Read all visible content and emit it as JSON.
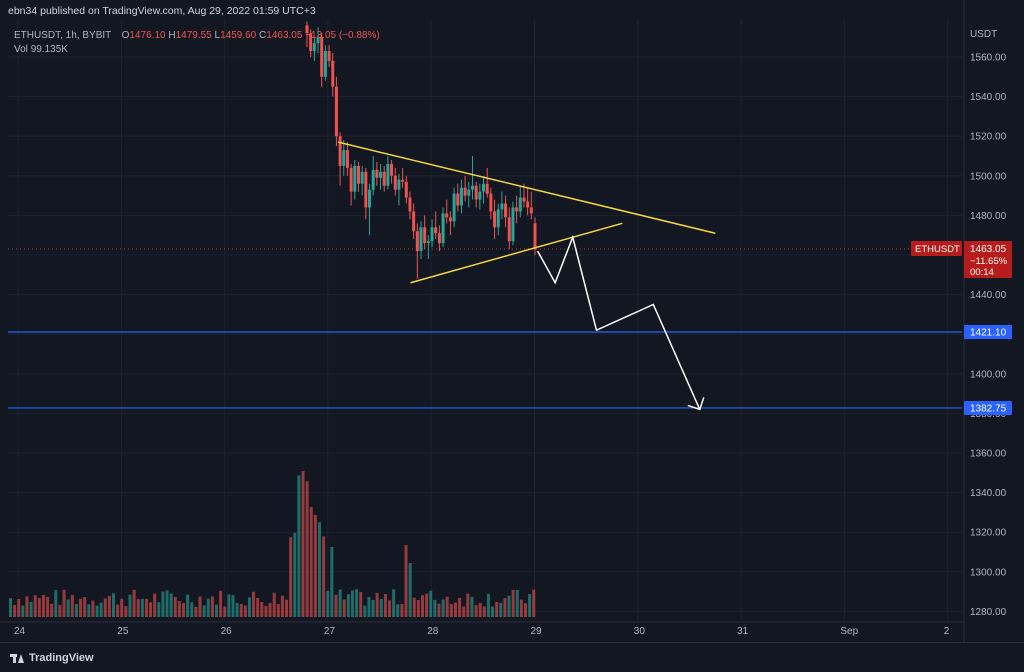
{
  "header": {
    "credit": "ebn34 published on TradingView.com, Aug 29, 2022 01:59 UTC+3"
  },
  "legend": {
    "symbol": "ETHUSDT, 1h, BYBIT",
    "o_label": "O",
    "o_value": "1476.10",
    "h_label": "H",
    "h_value": "1479.55",
    "l_label": "L",
    "l_value": "1459.60",
    "c_label": "C",
    "c_value": "1463.05",
    "change": "−13.05 (−0.88%)",
    "vol_label": "Vol",
    "vol_value": "99.135K"
  },
  "footer": {
    "brand": "TradingView"
  },
  "colors": {
    "background": "#131722",
    "grid": "#1e222d",
    "up": "#26a69a",
    "down": "#ef5350",
    "trendline": "#f5d93b",
    "arrow": "#ffffff",
    "hline": "#2962ff",
    "price_tag": "#b71c1c",
    "axis_text": "#b2b5be"
  },
  "chart_data": {
    "type": "candlestick",
    "symbol": "ETHUSDT",
    "timeframe": "1h",
    "exchange": "BYBIT",
    "currency": "USDT",
    "y_ticks": [
      1560,
      1540,
      1520,
      1500,
      1480,
      1460,
      1440,
      1420,
      1400,
      1380,
      1360,
      1340,
      1320,
      1300,
      1280
    ],
    "y_tick_labels": [
      "1560.00",
      "1540.00",
      "1520.00",
      "1500.00",
      "1480.00",
      "1460.00",
      "1440.00",
      "1420.00",
      "1400.00",
      "1380.00",
      "1360.00",
      "1340.00",
      "1320.00",
      "1300.00",
      "1280.00"
    ],
    "ylim": [
      1272,
      1580
    ],
    "x_ticks": [
      "24",
      "25",
      "26",
      "27",
      "28",
      "29",
      "30",
      "31",
      "Sep",
      "2"
    ],
    "current_price": {
      "label": "ETHUSDT",
      "value": "1463.05",
      "change": "−11.65%",
      "countdown": "00:14"
    },
    "hlines": [
      {
        "value": 1421.1,
        "label": "1421.10"
      },
      {
        "value": 1382.75,
        "label": "1382.75"
      }
    ],
    "trendlines": [
      {
        "name": "upper",
        "start": {
          "day": 27.1,
          "price": 1517
        },
        "end": {
          "day": 30.75,
          "price": 1471
        }
      },
      {
        "name": "lower",
        "start": {
          "day": 27.8,
          "price": 1446
        },
        "end": {
          "day": 29.85,
          "price": 1476
        }
      }
    ],
    "projection_path": [
      {
        "day": 29.03,
        "price": 1462
      },
      {
        "day": 29.2,
        "price": 1446
      },
      {
        "day": 29.37,
        "price": 1469
      },
      {
        "day": 29.6,
        "price": 1422
      },
      {
        "day": 30.15,
        "price": 1435
      },
      {
        "day": 30.6,
        "price": 1382
      }
    ],
    "ohlc": [
      [
        1576,
        1578,
        1565,
        1572
      ],
      [
        1572,
        1574,
        1560,
        1563
      ],
      [
        1563,
        1570,
        1558,
        1567
      ],
      [
        1567,
        1575,
        1562,
        1570
      ],
      [
        1570,
        1572,
        1545,
        1550
      ],
      [
        1550,
        1566,
        1548,
        1563
      ],
      [
        1563,
        1566,
        1555,
        1558
      ],
      [
        1558,
        1562,
        1540,
        1545
      ],
      [
        1545,
        1550,
        1515,
        1520
      ],
      [
        1520,
        1522,
        1495,
        1505
      ],
      [
        1505,
        1518,
        1500,
        1513
      ],
      [
        1513,
        1517,
        1500,
        1504
      ],
      [
        1504,
        1506,
        1485,
        1492
      ],
      [
        1492,
        1508,
        1488,
        1505
      ],
      [
        1505,
        1507,
        1492,
        1496
      ],
      [
        1496,
        1505,
        1490,
        1502
      ],
      [
        1502,
        1504,
        1478,
        1484
      ],
      [
        1484,
        1496,
        1470,
        1493
      ],
      [
        1493,
        1510,
        1490,
        1503
      ],
      [
        1503,
        1507,
        1495,
        1499
      ],
      [
        1499,
        1506,
        1493,
        1502
      ],
      [
        1502,
        1505,
        1492,
        1495
      ],
      [
        1495,
        1510,
        1493,
        1506
      ],
      [
        1506,
        1508,
        1496,
        1500
      ],
      [
        1500,
        1504,
        1490,
        1493
      ],
      [
        1493,
        1501,
        1485,
        1498
      ],
      [
        1498,
        1504,
        1494,
        1497
      ],
      [
        1497,
        1500,
        1486,
        1489
      ],
      [
        1489,
        1492,
        1478,
        1482
      ],
      [
        1482,
        1486,
        1468,
        1472
      ],
      [
        1472,
        1476,
        1448,
        1462
      ],
      [
        1462,
        1477,
        1458,
        1474
      ],
      [
        1474,
        1480,
        1463,
        1466
      ],
      [
        1466,
        1470,
        1458,
        1467
      ],
      [
        1467,
        1478,
        1464,
        1474
      ],
      [
        1474,
        1482,
        1468,
        1471
      ],
      [
        1471,
        1475,
        1462,
        1466
      ],
      [
        1466,
        1484,
        1464,
        1481
      ],
      [
        1481,
        1488,
        1476,
        1479
      ],
      [
        1479,
        1482,
        1470,
        1477
      ],
      [
        1477,
        1494,
        1474,
        1491
      ],
      [
        1491,
        1496,
        1482,
        1485
      ],
      [
        1485,
        1498,
        1481,
        1494
      ],
      [
        1494,
        1500,
        1487,
        1490
      ],
      [
        1490,
        1497,
        1484,
        1493
      ],
      [
        1493,
        1510,
        1488,
        1495
      ],
      [
        1495,
        1497,
        1484,
        1488
      ],
      [
        1488,
        1496,
        1483,
        1492
      ],
      [
        1492,
        1500,
        1486,
        1496
      ],
      [
        1496,
        1504,
        1489,
        1491
      ],
      [
        1491,
        1494,
        1478,
        1482
      ],
      [
        1482,
        1488,
        1468,
        1474
      ],
      [
        1474,
        1486,
        1470,
        1483
      ],
      [
        1483,
        1492,
        1478,
        1486
      ],
      [
        1486,
        1490,
        1474,
        1479
      ],
      [
        1479,
        1484,
        1463,
        1467
      ],
      [
        1467,
        1487,
        1465,
        1484
      ],
      [
        1484,
        1490,
        1476,
        1482
      ],
      [
        1482,
        1495,
        1479,
        1489
      ],
      [
        1489,
        1496,
        1484,
        1487
      ],
      [
        1487,
        1494,
        1480,
        1484
      ],
      [
        1484,
        1492,
        1478,
        1481
      ],
      [
        1476,
        1479,
        1460,
        1463
      ]
    ],
    "volume_scale_note": "volume bars share the lower pane; no numeric axis printed"
  }
}
